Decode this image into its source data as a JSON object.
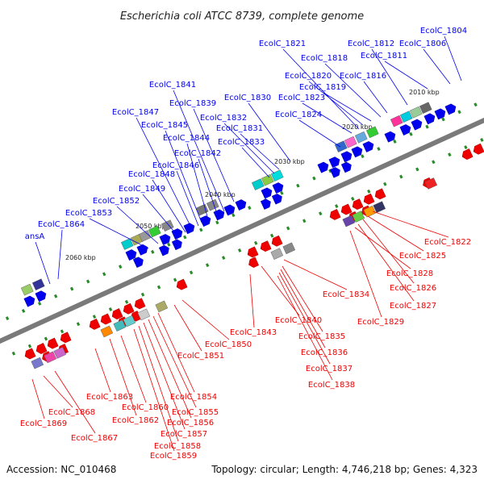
{
  "title": "Escherichia coli ATCC 8739, complete genome",
  "accession": "Accession: NC_010468",
  "topology": "Topology: circular; Length: 4,746,218 bp; Genes: 4,323",
  "colors": {
    "top_strand": "#0000ee",
    "bottom_strand": "#ee0000",
    "tick": "#2a8a2a"
  },
  "kbp_marks": [
    {
      "label": "2010 kbp",
      "kbp": 2010
    },
    {
      "label": "2020 kbp",
      "kbp": 2020
    },
    {
      "label": "2030 kbp",
      "kbp": 2030
    },
    {
      "label": "2040 kbp",
      "kbp": 2040
    },
    {
      "label": "2050 kbp",
      "kbp": 2050
    },
    {
      "label": "2060 kbp",
      "kbp": 2060
    }
  ],
  "genes_top": [
    "EcolC_1804",
    "EcolC_1806",
    "EcolC_1811",
    "EcolC_1812",
    "EcolC_1816",
    "EcolC_1818",
    "EcolC_1819",
    "EcolC_1820",
    "EcolC_1821",
    "EcolC_1823",
    "EcolC_1824",
    "EcolC_1830",
    "EcolC_1831",
    "EcolC_1832",
    "EcolC_1833",
    "EcolC_1839",
    "EcolC_1841",
    "EcolC_1842",
    "EcolC_1844",
    "EcolC_1845",
    "EcolC_1846",
    "EcolC_1847",
    "EcolC_1848",
    "EcolC_1849",
    "EcolC_1852",
    "EcolC_1853",
    "EcolC_1864",
    "ansA"
  ],
  "genes_bottom": [
    "EcolC_1822",
    "EcolC_1825",
    "EcolC_1826",
    "EcolC_1827",
    "EcolC_1828",
    "EcolC_1829",
    "EcolC_1834",
    "EcolC_1835",
    "EcolC_1836",
    "EcolC_1837",
    "EcolC_1838",
    "EcolC_1840",
    "EcolC_1843",
    "EcolC_1850",
    "EcolC_1851",
    "EcolC_1854",
    "EcolC_1855",
    "EcolC_1856",
    "EcolC_1857",
    "EcolC_1858",
    "EcolC_1859",
    "EcolC_1860",
    "EcolC_1862",
    "EcolC_1863",
    "EcolC_1867",
    "EcolC_1868",
    "EcolC_1869"
  ]
}
